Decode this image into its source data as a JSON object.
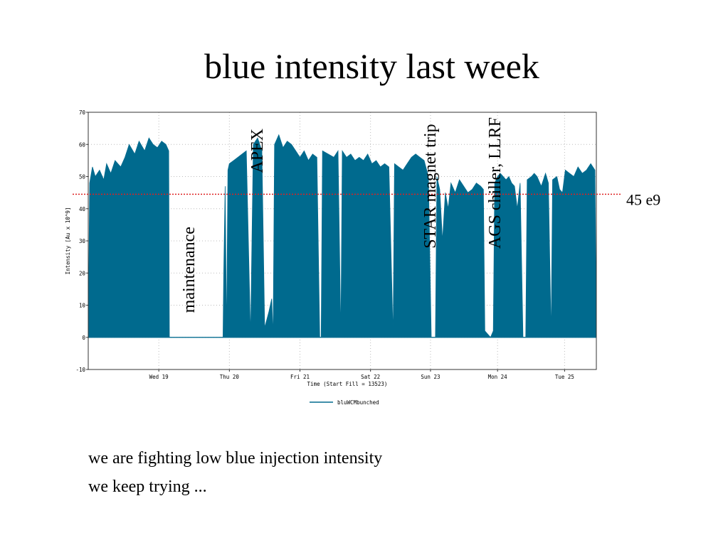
{
  "slide": {
    "title": "blue intensity last week",
    "notes": [
      "we are fighting low blue injection intensity",
      "we keep trying ..."
    ]
  },
  "chart_data": {
    "type": "area",
    "title": "",
    "xlabel": "Time (Start Fill = 13523)",
    "ylabel": "Intensity [Au x 10^9]",
    "xlim": [
      0,
      7.2
    ],
    "ylim": [
      -10,
      70
    ],
    "y_ticks": [
      -10,
      0,
      10,
      20,
      30,
      40,
      50,
      60,
      70
    ],
    "x_ticks": [
      {
        "x": 1.0,
        "label": "Wed 19"
      },
      {
        "x": 2.0,
        "label": "Thu 20"
      },
      {
        "x": 3.0,
        "label": "Fri 21"
      },
      {
        "x": 4.0,
        "label": "Sat 22"
      },
      {
        "x": 4.85,
        "label": "Sun 23"
      },
      {
        "x": 5.8,
        "label": "Mon 24"
      },
      {
        "x": 6.75,
        "label": "Tue 25"
      }
    ],
    "grid": true,
    "legend_position": "bottom-center",
    "color": "#006a8e",
    "series": [
      {
        "name": "bluWCMbunched",
        "points": [
          [
            0.0,
            0
          ],
          [
            0.02,
            48
          ],
          [
            0.06,
            53
          ],
          [
            0.1,
            50
          ],
          [
            0.16,
            52
          ],
          [
            0.22,
            49
          ],
          [
            0.26,
            54
          ],
          [
            0.32,
            51
          ],
          [
            0.38,
            55
          ],
          [
            0.46,
            53
          ],
          [
            0.52,
            56
          ],
          [
            0.58,
            60
          ],
          [
            0.66,
            57
          ],
          [
            0.72,
            61
          ],
          [
            0.8,
            58
          ],
          [
            0.86,
            62
          ],
          [
            0.92,
            60
          ],
          [
            0.98,
            59
          ],
          [
            1.04,
            61
          ],
          [
            1.1,
            60
          ],
          [
            1.14,
            58
          ],
          [
            1.15,
            0
          ],
          [
            1.9,
            0
          ],
          [
            1.91,
            0
          ],
          [
            1.92,
            20
          ],
          [
            1.94,
            47
          ],
          [
            1.96,
            0
          ],
          [
            1.98,
            52
          ],
          [
            2.0,
            54
          ],
          [
            2.06,
            55
          ],
          [
            2.12,
            56
          ],
          [
            2.18,
            57
          ],
          [
            2.24,
            58
          ],
          [
            2.3,
            0
          ],
          [
            2.34,
            60
          ],
          [
            2.4,
            62
          ],
          [
            2.46,
            58
          ],
          [
            2.5,
            3
          ],
          [
            2.56,
            8
          ],
          [
            2.6,
            12
          ],
          [
            2.62,
            0
          ],
          [
            2.64,
            60
          ],
          [
            2.7,
            63
          ],
          [
            2.76,
            59
          ],
          [
            2.82,
            61
          ],
          [
            2.88,
            60
          ],
          [
            2.94,
            58
          ],
          [
            3.0,
            56
          ],
          [
            3.06,
            58
          ],
          [
            3.12,
            55
          ],
          [
            3.18,
            57
          ],
          [
            3.24,
            56
          ],
          [
            3.28,
            0
          ],
          [
            3.3,
            0
          ],
          [
            3.32,
            58
          ],
          [
            3.4,
            57
          ],
          [
            3.48,
            56
          ],
          [
            3.54,
            58
          ],
          [
            3.58,
            0
          ],
          [
            3.6,
            58
          ],
          [
            3.66,
            56
          ],
          [
            3.72,
            57
          ],
          [
            3.78,
            55
          ],
          [
            3.84,
            56
          ],
          [
            3.9,
            55
          ],
          [
            3.96,
            57
          ],
          [
            4.02,
            54
          ],
          [
            4.08,
            55
          ],
          [
            4.14,
            53
          ],
          [
            4.2,
            54
          ],
          [
            4.26,
            53
          ],
          [
            4.32,
            0
          ],
          [
            4.34,
            54
          ],
          [
            4.4,
            53
          ],
          [
            4.46,
            52
          ],
          [
            4.52,
            54
          ],
          [
            4.58,
            56
          ],
          [
            4.64,
            57
          ],
          [
            4.7,
            56
          ],
          [
            4.76,
            55
          ],
          [
            4.82,
            50
          ],
          [
            4.86,
            0
          ],
          [
            4.92,
            0
          ],
          [
            4.94,
            50
          ],
          [
            4.98,
            46
          ],
          [
            5.02,
            30
          ],
          [
            5.06,
            45
          ],
          [
            5.1,
            40
          ],
          [
            5.14,
            48
          ],
          [
            5.2,
            45
          ],
          [
            5.26,
            49
          ],
          [
            5.32,
            47
          ],
          [
            5.38,
            45
          ],
          [
            5.44,
            46
          ],
          [
            5.5,
            48
          ],
          [
            5.56,
            47
          ],
          [
            5.6,
            46
          ],
          [
            5.62,
            2
          ],
          [
            5.7,
            0
          ],
          [
            5.74,
            2
          ],
          [
            5.76,
            48
          ],
          [
            5.8,
            50
          ],
          [
            5.84,
            51
          ],
          [
            5.88,
            50
          ],
          [
            5.92,
            49
          ],
          [
            5.96,
            50
          ],
          [
            6.0,
            48
          ],
          [
            6.04,
            47
          ],
          [
            6.08,
            40
          ],
          [
            6.12,
            48
          ],
          [
            6.16,
            0
          ],
          [
            6.2,
            0
          ],
          [
            6.22,
            49
          ],
          [
            6.28,
            50
          ],
          [
            6.32,
            51
          ],
          [
            6.36,
            50
          ],
          [
            6.42,
            47
          ],
          [
            6.48,
            51
          ],
          [
            6.52,
            48
          ],
          [
            6.56,
            0
          ],
          [
            6.58,
            49
          ],
          [
            6.64,
            50
          ],
          [
            6.68,
            46
          ],
          [
            6.72,
            45
          ],
          [
            6.76,
            52
          ],
          [
            6.82,
            51
          ],
          [
            6.88,
            50
          ],
          [
            6.94,
            53
          ],
          [
            7.0,
            51
          ],
          [
            7.06,
            52
          ],
          [
            7.12,
            54
          ],
          [
            7.18,
            52
          ],
          [
            7.2,
            0
          ]
        ]
      }
    ],
    "threshold": {
      "value": 44.5,
      "label": "45 e9",
      "color": "#dd2222"
    },
    "annotations": [
      {
        "text": "maintenance",
        "x": 1.5,
        "y": 21
      },
      {
        "text": "APEX",
        "x": 2.47,
        "y": 58
      },
      {
        "text": "STAR magnet trip",
        "x": 4.92,
        "y": 47
      },
      {
        "text": "AGS chiller, LLRF",
        "x": 5.84,
        "y": 48
      }
    ]
  }
}
